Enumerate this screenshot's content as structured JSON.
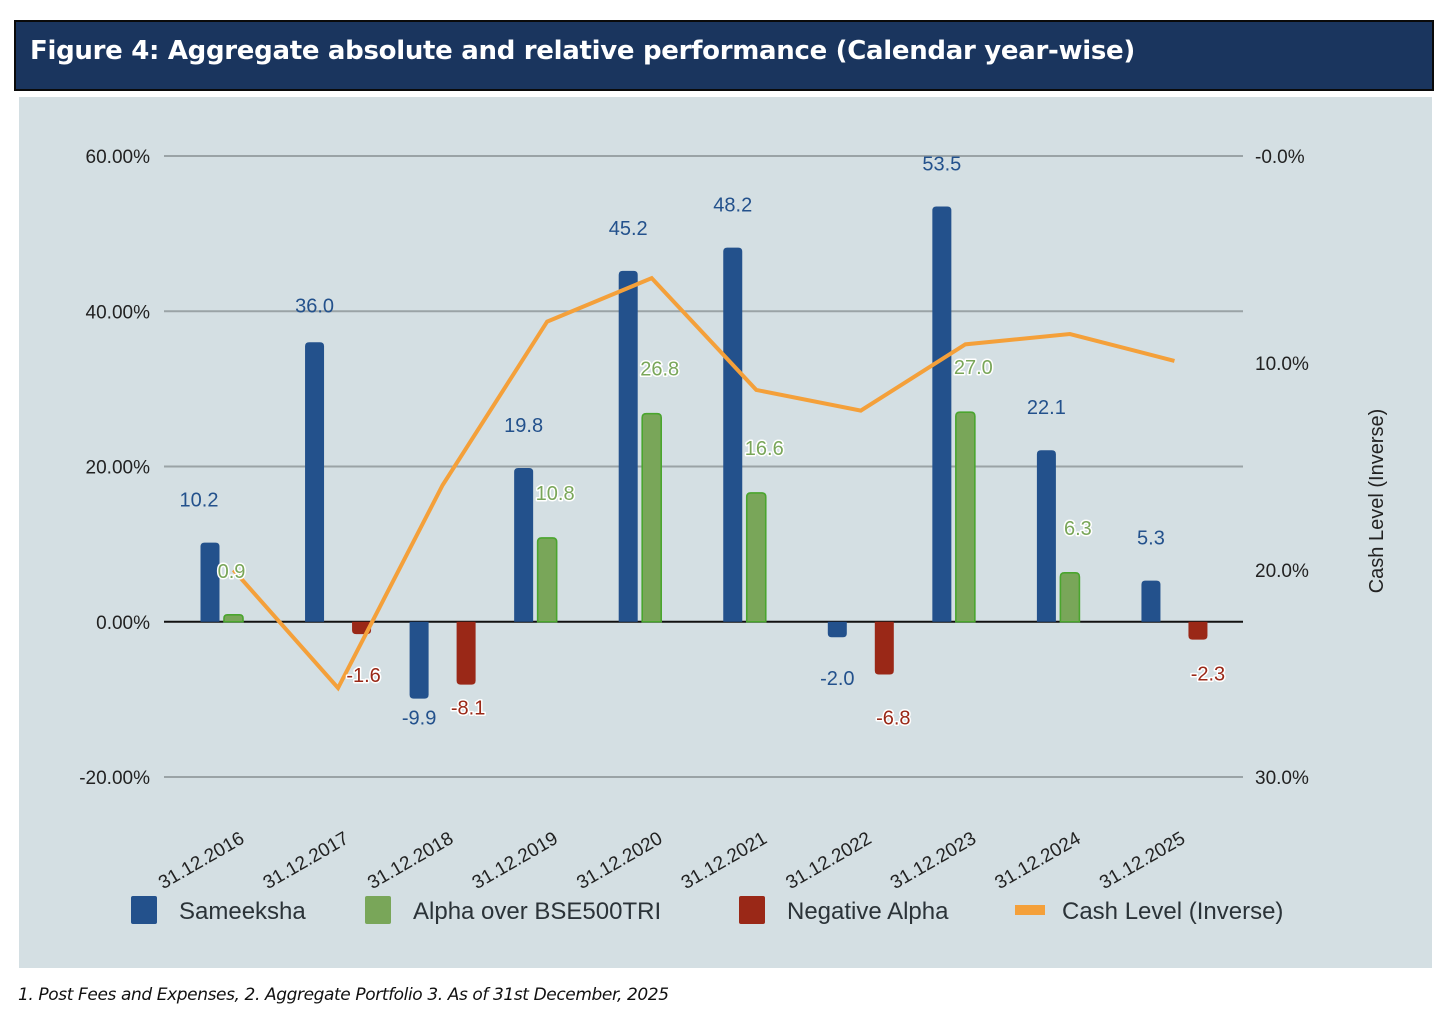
{
  "header": {
    "title": "Figure 4:  Aggregate absolute and relative performance (Calendar year-wise)"
  },
  "footnote": "1. Post Fees and Expenses, 2. Aggregate Portfolio  3. As of 31st December, 2025",
  "colors": {
    "sameeksha": "#23518c",
    "alpha": "#79a659",
    "alpha_border": "#4aa52e",
    "negative_alpha": "#9a2817",
    "cash": "#f4a03a",
    "panel_bg": "#d4dfe3",
    "header_bg": "#1a355e"
  },
  "chart_data": {
    "type": "bar",
    "title": "Aggregate absolute and relative performance (Calendar year-wise)",
    "categories": [
      "31.12.2016",
      "31.12.2017",
      "31.12.2018",
      "31.12.2019",
      "31.12.2020",
      "31.12.2021",
      "31.12.2022",
      "31.12.2023",
      "31.12.2024",
      "31.12.2025"
    ],
    "series": [
      {
        "name": "Sameeksha",
        "type": "bar",
        "axis": "left",
        "values": [
          10.2,
          36.0,
          -9.9,
          19.8,
          45.2,
          48.2,
          -2.0,
          53.5,
          22.1,
          5.3
        ],
        "labels": [
          "10.2",
          "36.0",
          "-9.9",
          "19.8",
          "45.2",
          "48.2",
          "-2.0",
          "53.5",
          "22.1",
          "5.3"
        ]
      },
      {
        "name": "Alpha over BSE500TRI",
        "type": "bar",
        "axis": "left",
        "values": [
          0.9,
          null,
          null,
          10.8,
          26.8,
          16.6,
          null,
          27.0,
          6.3,
          null
        ],
        "labels": [
          "0.9",
          null,
          null,
          "10.8",
          "26.8",
          "16.6",
          null,
          "27.0",
          "6.3",
          null
        ]
      },
      {
        "name": "Negative Alpha",
        "type": "bar",
        "axis": "left",
        "values": [
          null,
          -1.6,
          -8.1,
          null,
          null,
          null,
          -6.8,
          null,
          null,
          -2.3
        ],
        "labels": [
          null,
          "-1.6",
          "-8.1",
          null,
          null,
          null,
          "-6.8",
          null,
          null,
          "-2.3"
        ]
      },
      {
        "name": "Cash Level (Inverse)",
        "type": "line",
        "axis": "right",
        "values": [
          20.0,
          25.7,
          15.9,
          8.0,
          5.9,
          11.3,
          12.3,
          9.1,
          8.6,
          9.9
        ]
      }
    ],
    "left_axis": {
      "ylim": [
        -20,
        60
      ],
      "ticks": [
        60,
        40,
        20,
        0,
        -20
      ],
      "tick_labels": [
        "60.00%",
        "40.00%",
        "20.00%",
        "0.00%",
        "-20.00%"
      ],
      "label": ""
    },
    "right_axis": {
      "ylim": [
        0,
        30
      ],
      "inverted": true,
      "ticks": [
        0,
        10,
        20,
        30
      ],
      "tick_labels": [
        "-0.0%",
        "10.0%",
        "20.0%",
        "30.0%"
      ],
      "label": "Cash Level (Inverse)"
    },
    "xlabel": "",
    "grid": true,
    "legend": {
      "position": "bottom",
      "entries": [
        "Sameeksha",
        "Alpha over BSE500TRI",
        "Negative Alpha",
        "Cash Level (Inverse)"
      ]
    }
  }
}
